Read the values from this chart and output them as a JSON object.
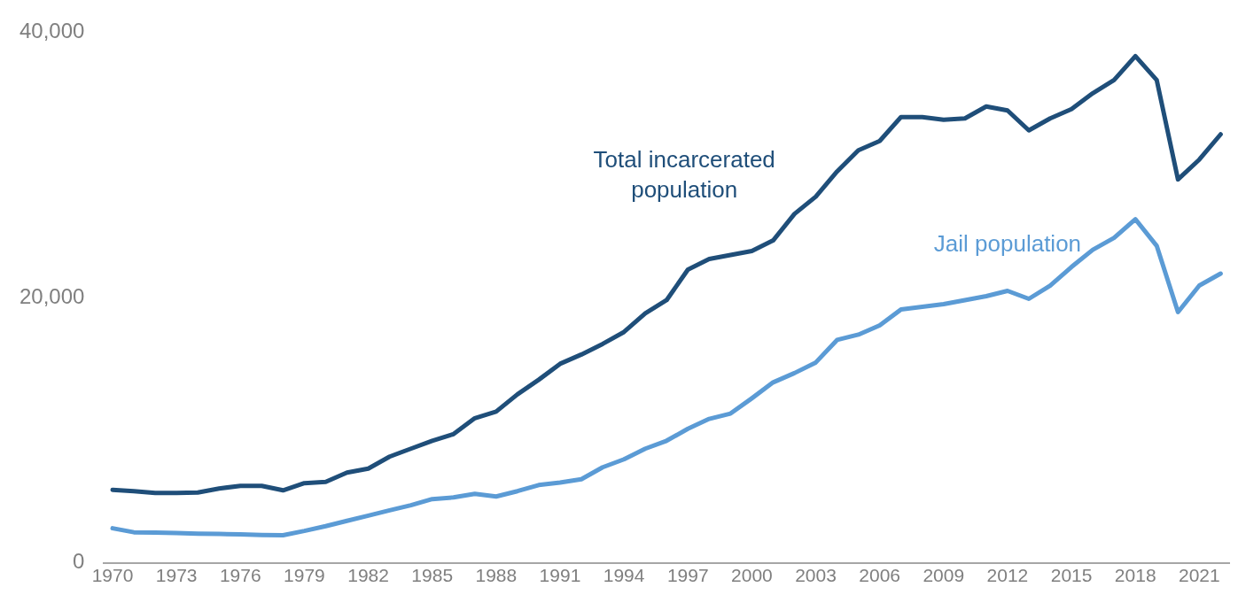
{
  "chart_data": {
    "type": "line",
    "x": [
      1970,
      1971,
      1972,
      1973,
      1974,
      1975,
      1976,
      1977,
      1978,
      1979,
      1980,
      1981,
      1982,
      1983,
      1984,
      1985,
      1986,
      1987,
      1988,
      1989,
      1990,
      1991,
      1992,
      1993,
      1994,
      1995,
      1996,
      1997,
      1998,
      1999,
      2000,
      2001,
      2002,
      2003,
      2004,
      2005,
      2006,
      2007,
      2008,
      2009,
      2010,
      2011,
      2012,
      2013,
      2014,
      2015,
      2016,
      2017,
      2018,
      2019,
      2020,
      2021,
      2022
    ],
    "series": [
      {
        "name": "Total incarcerated population",
        "color": "#1f4e79",
        "values": [
          5500,
          5400,
          5260,
          5260,
          5300,
          5600,
          5800,
          5800,
          5460,
          6000,
          6100,
          6800,
          7100,
          8000,
          8600,
          9200,
          9700,
          10900,
          11400,
          12700,
          13800,
          15000,
          15700,
          16500,
          17400,
          18800,
          19800,
          22100,
          22900,
          23200,
          23500,
          24300,
          26300,
          27600,
          29500,
          31100,
          31800,
          33600,
          33600,
          33400,
          33500,
          34400,
          34100,
          32600,
          33500,
          34200,
          35400,
          36400,
          38200,
          36400,
          28900,
          30400,
          32300
        ]
      },
      {
        "name": "Jail population",
        "color": "#5b9bd5",
        "values": [
          2600,
          2300,
          2270,
          2240,
          2200,
          2170,
          2140,
          2100,
          2080,
          2400,
          2760,
          3160,
          3550,
          3950,
          4340,
          4800,
          4930,
          5200,
          5000,
          5400,
          5860,
          6050,
          6300,
          7200,
          7800,
          8600,
          9200,
          10100,
          10850,
          11250,
          12400,
          13600,
          14300,
          15100,
          16800,
          17200,
          17900,
          19100,
          19300,
          19500,
          19800,
          20100,
          20500,
          19900,
          20900,
          22300,
          23600,
          24500,
          25900,
          23900,
          18900,
          20900,
          21800
        ]
      }
    ],
    "xlim": [
      1969.6,
      2022.4
    ],
    "xticks": [
      1970,
      1973,
      1976,
      1979,
      1982,
      1985,
      1988,
      1991,
      1994,
      1997,
      2000,
      2003,
      2006,
      2009,
      2012,
      2015,
      2018,
      2021
    ],
    "ylim": [
      0,
      40000
    ],
    "yticks": [
      {
        "value": 0,
        "label": "0"
      },
      {
        "value": 20000,
        "label": "20,000"
      },
      {
        "value": 40000,
        "label": "40,000"
      }
    ],
    "grid": false,
    "legend": false,
    "marker": "none",
    "line_style": "solid"
  }
}
